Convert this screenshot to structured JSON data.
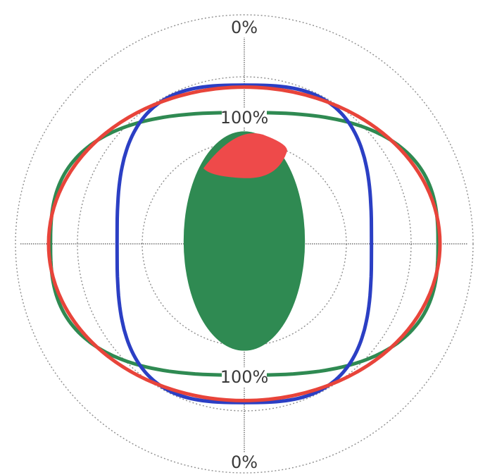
{
  "chart_data": {
    "type": "polar",
    "title": "",
    "radial_tick_labels": [
      "0%",
      "100%",
      "100%",
      "0%"
    ],
    "grid": true,
    "series": [
      {
        "color": "#e8443a",
        "kind": "outline",
        "shape": "ellipse",
        "half_width": 100,
        "half_height": 80
      },
      {
        "color": "#2f8a52",
        "kind": "outline",
        "shape": "rounded-ellipse",
        "half_width": 99,
        "half_height": 67
      },
      {
        "color": "#2b3fc4",
        "kind": "outline",
        "shape": "superellipse",
        "half_width": 65,
        "half_height": 81
      },
      {
        "color": "#2f8a52",
        "kind": "filled",
        "shape": "ellipse",
        "half_width": 31,
        "half_height": 56
      },
      {
        "color": "#ee4a4a",
        "kind": "filled",
        "shape": "cap",
        "half_width": 18,
        "half_height": 21
      }
    ]
  }
}
